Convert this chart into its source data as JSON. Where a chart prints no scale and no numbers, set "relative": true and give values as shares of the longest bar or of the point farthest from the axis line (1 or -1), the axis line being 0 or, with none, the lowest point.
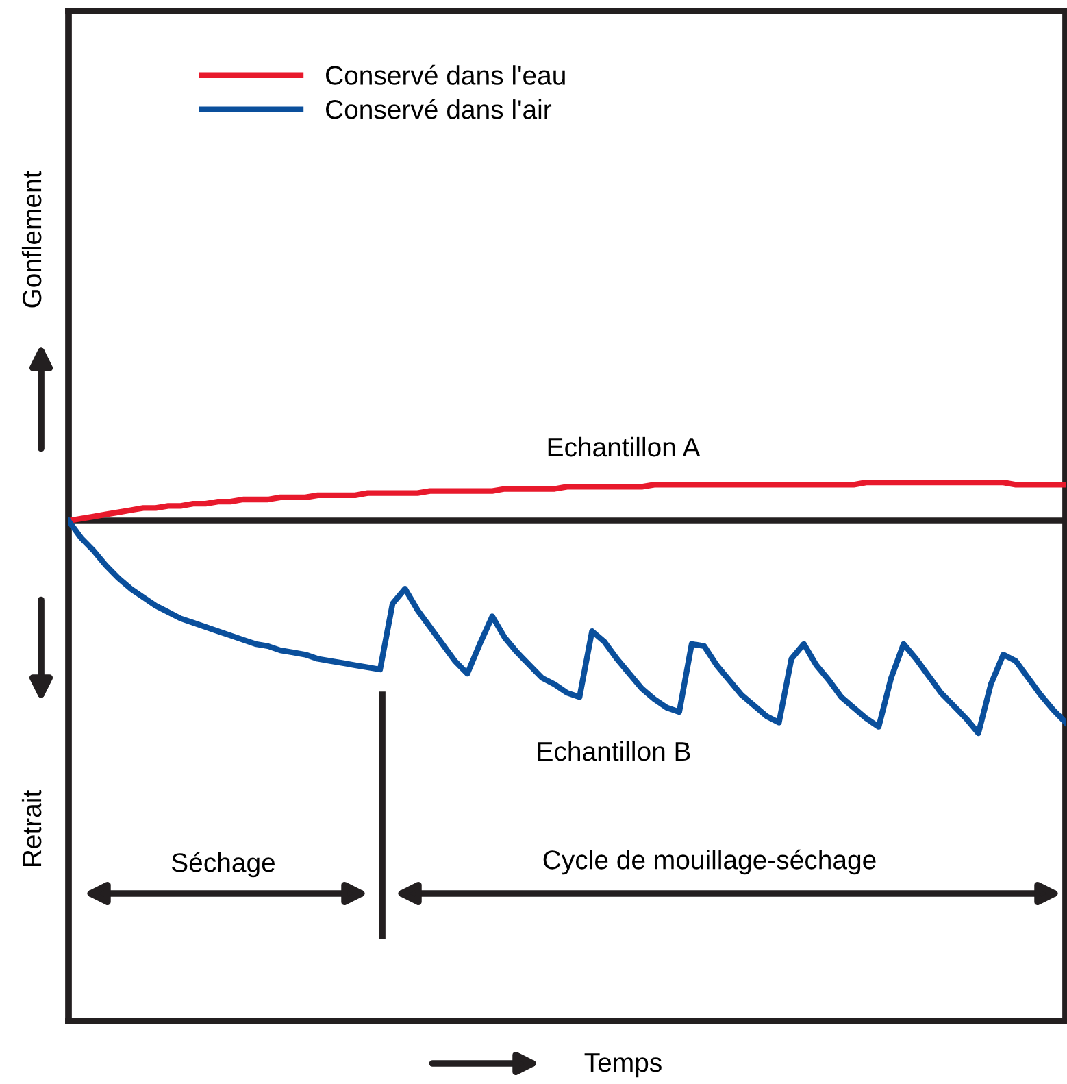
{
  "chart_data": {
    "type": "line",
    "relative": true,
    "legend": "top left",
    "grid": false,
    "marker": "none",
    "line_style": "solid",
    "categories": [
      null,
      null,
      null,
      null,
      null,
      null,
      null,
      null,
      null,
      null,
      null,
      null,
      null,
      null,
      null,
      null,
      null,
      null,
      null,
      null,
      null,
      null,
      null,
      null,
      null,
      null,
      null,
      null,
      null,
      null,
      null,
      null,
      null,
      null,
      null,
      null,
      null,
      null,
      null,
      null,
      null,
      null,
      null,
      null,
      null,
      null,
      null,
      null,
      null,
      null,
      null,
      null,
      null,
      null,
      null,
      null,
      null,
      null,
      null,
      null,
      null,
      null,
      null,
      null,
      null,
      null,
      null,
      null,
      null,
      null,
      null,
      null,
      null,
      null,
      null,
      null,
      null,
      null,
      null,
      null,
      null
    ],
    "series": [
      {
        "name": "Conservé dans l'eau",
        "color": "#e8192c",
        "values": [
          0,
          0.01,
          0.02,
          0.03,
          0.04,
          0.05,
          0.06,
          0.06,
          0.07,
          0.07,
          0.08,
          0.08,
          0.09,
          0.09,
          0.1,
          0.1,
          0.1,
          0.11,
          0.11,
          0.11,
          0.12,
          0.12,
          0.12,
          0.12,
          0.13,
          0.13,
          0.13,
          0.13,
          0.13,
          0.14,
          0.14,
          0.14,
          0.14,
          0.14,
          0.14,
          0.15,
          0.15,
          0.15,
          0.15,
          0.15,
          0.16,
          0.16,
          0.16,
          0.16,
          0.16,
          0.16,
          0.16,
          0.17,
          0.17,
          0.17,
          0.17,
          0.17,
          0.17,
          0.17,
          0.17,
          0.17,
          0.17,
          0.17,
          0.17,
          0.17,
          0.17,
          0.17,
          0.17,
          0.17,
          0.18,
          0.18,
          0.18,
          0.18,
          0.18,
          0.18,
          0.18,
          0.18,
          0.18,
          0.18,
          0.18,
          0.18,
          0.17,
          0.17,
          0.17,
          0.17,
          0.17
        ]
      },
      {
        "name": "Conservé dans l'air",
        "color": "#0a4f9c",
        "values": [
          0,
          -0.08,
          -0.14,
          -0.21,
          -0.27,
          -0.32,
          -0.36,
          -0.4,
          -0.43,
          -0.46,
          -0.48,
          -0.5,
          -0.52,
          -0.54,
          -0.56,
          -0.58,
          -0.59,
          -0.61,
          -0.62,
          -0.63,
          -0.65,
          -0.66,
          -0.67,
          -0.68,
          -0.69,
          -0.7,
          -0.39,
          -0.32,
          -0.42,
          -0.5,
          -0.58,
          -0.66,
          -0.72,
          -0.58,
          -0.45,
          -0.55,
          -0.62,
          -0.68,
          -0.74,
          -0.77,
          -0.81,
          -0.83,
          -0.52,
          -0.57,
          -0.65,
          -0.72,
          -0.79,
          -0.84,
          -0.88,
          -0.9,
          -0.58,
          -0.59,
          -0.68,
          -0.75,
          -0.82,
          -0.87,
          -0.92,
          -0.95,
          -0.65,
          -0.58,
          -0.68,
          -0.75,
          -0.83,
          -0.88,
          -0.93,
          -0.97,
          -0.74,
          -0.58,
          -0.65,
          -0.73,
          -0.81,
          -0.87,
          -0.93,
          -1,
          -0.77,
          -0.63,
          -0.66,
          -0.74,
          -0.82,
          -0.89,
          -0.95
        ]
      }
    ],
    "annotations": [
      "Echantillon A",
      "Echantillon B",
      "Séchage",
      "Cycle de mouillage-séchage",
      "Gonflement",
      "Retrait",
      "Temps"
    ]
  }
}
